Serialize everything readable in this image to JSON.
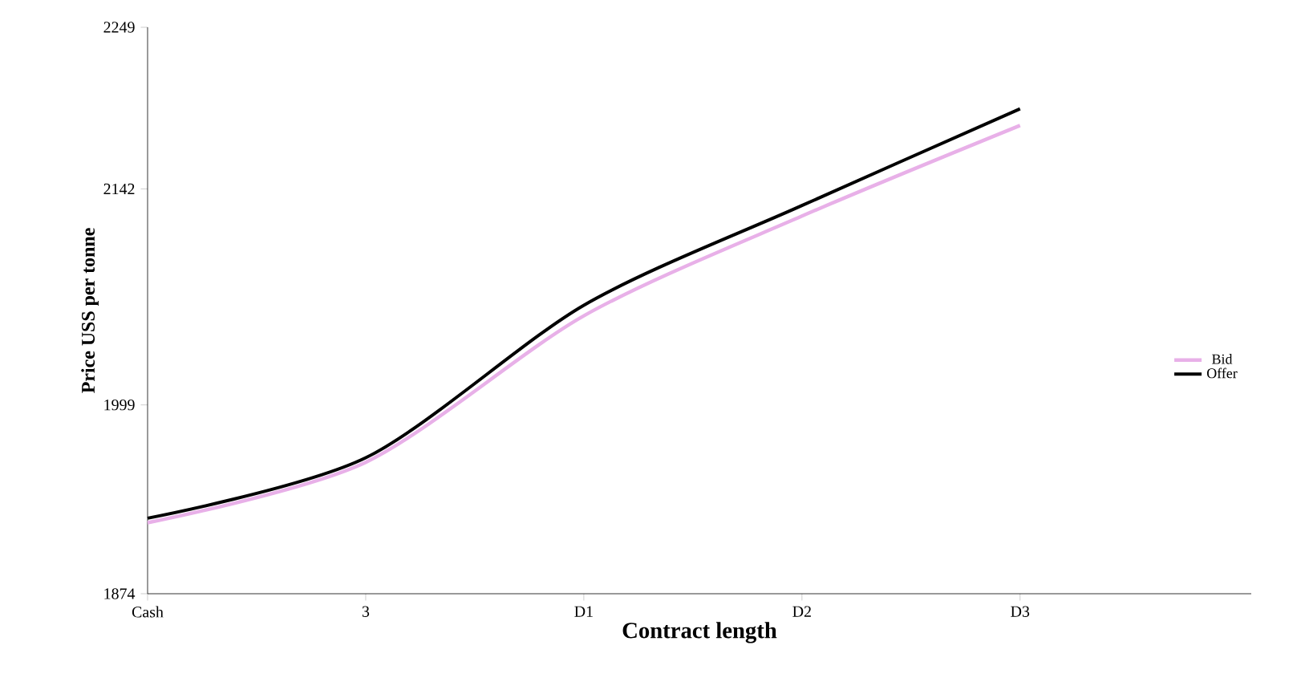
{
  "chart_data": {
    "type": "line",
    "xlabel": "Contract length",
    "ylabel": "Price USS per tonne",
    "categories": [
      "Cash",
      "3",
      "D1",
      "D2",
      "D3"
    ],
    "series": [
      {
        "name": "Bid",
        "color": "#e8b0e8",
        "values": [
          1921,
          1961,
          2058,
          2124,
          2184
        ]
      },
      {
        "name": "Offer",
        "color": "#000000",
        "values": [
          1924,
          1964,
          2065,
          2131,
          2195
        ]
      }
    ],
    "ylim": [
      1874,
      2249
    ],
    "yticks": [
      1874,
      1999,
      2142,
      2249
    ],
    "legend": "right",
    "marker": "none",
    "line_style": "solid",
    "grid": false
  }
}
